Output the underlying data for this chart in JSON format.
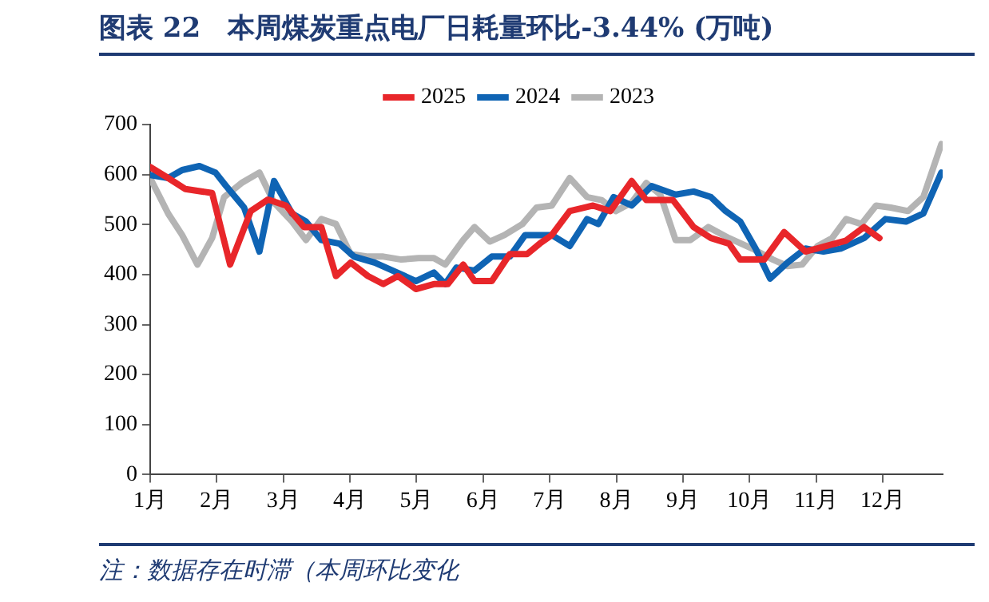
{
  "chart_data": {
    "type": "line",
    "title": "图表 22　本周煤炭重点电厂日耗量环比-3.44% (万吨)",
    "annotations": [
      "注：数据存在时滞（本周环比变化"
    ],
    "xlim": [
      1,
      12.9
    ],
    "xticks": [
      {
        "value": 1,
        "label": "1月"
      },
      {
        "value": 2,
        "label": "2月"
      },
      {
        "value": 3,
        "label": "3月"
      },
      {
        "value": 4,
        "label": "4月"
      },
      {
        "value": 5,
        "label": "5月"
      },
      {
        "value": 6,
        "label": "6月"
      },
      {
        "value": 7,
        "label": "7月"
      },
      {
        "value": 8,
        "label": "8月"
      },
      {
        "value": 9,
        "label": "9月"
      },
      {
        "value": 10,
        "label": "10月"
      },
      {
        "value": 11,
        "label": "11月"
      },
      {
        "value": 12,
        "label": "12月"
      }
    ],
    "ylim": [
      0,
      700
    ],
    "yticks": [
      0,
      100,
      200,
      300,
      400,
      500,
      600,
      700
    ],
    "grid": false,
    "legend": "top",
    "marker": "none",
    "line_style": "solid",
    "series": [
      {
        "name": "2025",
        "color": "#e8262a",
        "x": [
          1.0,
          1.27,
          1.53,
          1.93,
          2.2,
          2.51,
          2.77,
          3.04,
          3.31,
          3.57,
          3.79,
          4.01,
          4.27,
          4.5,
          4.72,
          4.99,
          5.26,
          5.47,
          5.7,
          5.87,
          6.13,
          6.4,
          6.66,
          6.85,
          7.03,
          7.3,
          7.65,
          7.91,
          8.23,
          8.45,
          8.85,
          9.16,
          9.42,
          9.69,
          9.86,
          10.22,
          10.52,
          10.84,
          11.15,
          11.45,
          11.72,
          11.95
        ],
        "values": [
          615,
          593,
          571,
          563,
          420,
          527,
          550,
          538,
          495,
          495,
          397,
          424,
          397,
          381,
          397,
          371,
          381,
          381,
          420,
          387,
          387,
          441,
          441,
          462,
          479,
          527,
          538,
          527,
          587,
          549,
          549,
          495,
          473,
          462,
          430,
          430,
          485,
          446,
          457,
          468,
          495,
          473
        ]
      },
      {
        "name": "2024",
        "color": "#0f64b4",
        "x": [
          1.0,
          1.27,
          1.48,
          1.74,
          1.98,
          2.14,
          2.41,
          2.64,
          2.86,
          3.13,
          3.34,
          3.57,
          3.84,
          4.06,
          4.37,
          4.64,
          4.99,
          5.26,
          5.43,
          5.6,
          5.87,
          6.13,
          6.4,
          6.63,
          6.85,
          7.03,
          7.3,
          7.56,
          7.73,
          7.96,
          8.23,
          8.53,
          8.89,
          9.16,
          9.42,
          9.64,
          9.86,
          10.09,
          10.31,
          10.57,
          10.84,
          11.11,
          11.37,
          11.72,
          12.04,
          12.35,
          12.61,
          12.88
        ],
        "values": [
          599,
          593,
          609,
          617,
          604,
          577,
          534,
          446,
          587,
          522,
          506,
          469,
          462,
          436,
          424,
          408,
          387,
          404,
          381,
          414,
          408,
          436,
          436,
          479,
          479,
          479,
          457,
          511,
          501,
          555,
          538,
          577,
          560,
          566,
          555,
          527,
          506,
          452,
          392,
          424,
          452,
          446,
          452,
          473,
          511,
          506,
          522,
          604
        ]
      },
      {
        "name": "2023",
        "color": "#b4b4b4",
        "x": [
          1.0,
          1.27,
          1.48,
          1.71,
          1.93,
          2.11,
          2.37,
          2.64,
          2.86,
          3.13,
          3.34,
          3.57,
          3.79,
          4.01,
          4.27,
          4.5,
          4.77,
          5.03,
          5.26,
          5.43,
          5.7,
          5.87,
          6.1,
          6.32,
          6.59,
          6.8,
          7.03,
          7.3,
          7.56,
          7.78,
          7.99,
          8.23,
          8.45,
          8.66,
          8.89,
          9.11,
          9.38,
          9.69,
          10.04,
          10.35,
          10.57,
          10.79,
          11.02,
          11.24,
          11.45,
          11.68,
          11.9,
          12.12,
          12.38,
          12.61,
          12.88
        ],
        "values": [
          593,
          522,
          479,
          420,
          473,
          555,
          583,
          604,
          544,
          506,
          469,
          511,
          501,
          441,
          436,
          436,
          430,
          433,
          433,
          420,
          469,
          495,
          466,
          479,
          501,
          534,
          538,
          593,
          555,
          549,
          527,
          544,
          583,
          560,
          469,
          469,
          495,
          473,
          452,
          430,
          417,
          420,
          457,
          473,
          511,
          501,
          538,
          534,
          527,
          555,
          661
        ]
      }
    ]
  }
}
